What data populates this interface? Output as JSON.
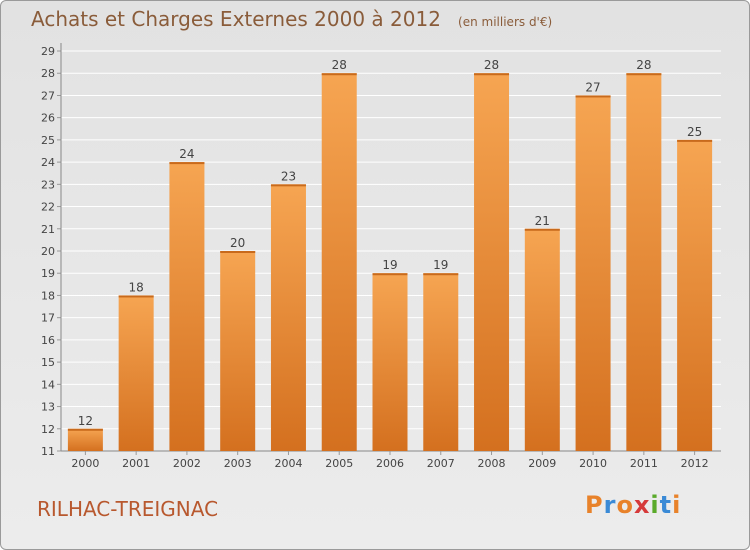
{
  "header": {
    "title": "Achats et Charges Externes 2000 à 2012",
    "unit": "(en milliers d'€)"
  },
  "footer": {
    "commune": "RILHAC-TREIGNAC",
    "logo_text": "Proxiti",
    "logo_colors": [
      "#e8822a",
      "#3a8ad6",
      "#e8822a",
      "#d63a3a",
      "#5aaa2a",
      "#3a8ad6",
      "#e8822a"
    ]
  },
  "colors": {
    "bar_light": "#f6a552",
    "bar_dark": "#d4701f",
    "grid": "#ffffff",
    "axis_text": "#444444"
  },
  "chart_data": {
    "type": "bar",
    "title": "Achats et Charges Externes 2000 à 2012",
    "subtitle": "(en milliers d'€)",
    "xlabel": "",
    "ylabel": "",
    "categories": [
      "2000",
      "2001",
      "2002",
      "2003",
      "2004",
      "2005",
      "2006",
      "2007",
      "2008",
      "2009",
      "2010",
      "2011",
      "2012"
    ],
    "values": [
      12,
      18,
      24,
      20,
      23,
      28,
      19,
      19,
      28,
      21,
      27,
      28,
      25
    ],
    "ylim": [
      11,
      29
    ],
    "yticks": [
      11,
      12,
      13,
      14,
      15,
      16,
      17,
      18,
      19,
      20,
      21,
      22,
      23,
      24,
      25,
      26,
      27,
      28,
      29
    ],
    "grid": true,
    "data_labels": true
  }
}
